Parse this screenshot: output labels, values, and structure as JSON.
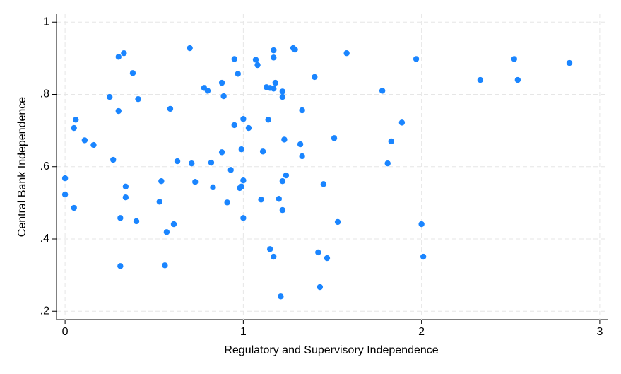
{
  "chart_data": {
    "type": "scatter",
    "x_label": "Regulatory and Supervisory Independence",
    "y_label": "Central Bank Independence",
    "color": "#1a85ff",
    "grid": true,
    "xlim": [
      -0.048,
      3.044
    ],
    "ylim": [
      0.177,
      1.022
    ],
    "xticks": [
      0,
      1,
      2,
      3
    ],
    "yticks": [
      {
        "value": 0.2,
        "label": ".2"
      },
      {
        "value": 0.4,
        "label": ".4"
      },
      {
        "value": 0.6,
        "label": ".6"
      },
      {
        "value": 0.8,
        "label": ".8"
      },
      1
    ],
    "x": [
      0,
      0,
      0.05,
      0.06,
      0.05,
      0.11,
      0.16,
      0.25,
      0.27,
      0.3,
      0.3,
      0.33,
      0.34,
      0.34,
      0.31,
      0.31,
      0.38,
      0.41,
      0.4,
      0.54,
      0.53,
      0.57,
      0.56,
      0.59,
      0.61,
      0.63,
      0.7,
      0.71,
      0.73,
      0.78,
      0.8,
      0.82,
      0.83,
      0.88,
      0.89,
      0.88,
      0.91,
      0.93,
      0.95,
      0.95,
      0.97,
      0.98,
      0.99,
      0.99,
      1.0,
      1.0,
      1.0,
      1.03,
      1.07,
      1.08,
      1.1,
      1.11,
      1.13,
      1.15,
      1.17,
      1.14,
      1.17,
      1.17,
      1.18,
      1.22,
      1.22,
      1.23,
      1.2,
      1.22,
      1.24,
      1.22,
      1.15,
      1.17,
      1.21,
      1.28,
      1.29,
      1.32,
      1.33,
      1.33,
      1.4,
      1.42,
      1.43,
      1.45,
      1.47,
      1.51,
      1.53,
      1.58,
      1.78,
      1.81,
      1.83,
      1.89,
      1.97,
      2.0,
      2.01,
      2.33,
      2.52,
      2.54,
      2.83
    ],
    "values": [
      0.568,
      0.523,
      0.486,
      0.73,
      0.707,
      0.673,
      0.66,
      0.793,
      0.619,
      0.754,
      0.904,
      0.914,
      0.545,
      0.515,
      0.458,
      0.325,
      0.859,
      0.787,
      0.449,
      0.56,
      0.503,
      0.419,
      0.327,
      0.76,
      0.441,
      0.615,
      0.928,
      0.609,
      0.558,
      0.818,
      0.81,
      0.611,
      0.543,
      0.832,
      0.795,
      0.64,
      0.501,
      0.591,
      0.898,
      0.715,
      0.857,
      0.541,
      0.545,
      0.648,
      0.732,
      0.562,
      0.458,
      0.707,
      0.896,
      0.881,
      0.509,
      0.642,
      0.82,
      0.818,
      0.816,
      0.73,
      0.922,
      0.902,
      0.832,
      0.808,
      0.793,
      0.675,
      0.511,
      0.56,
      0.576,
      0.48,
      0.372,
      0.351,
      0.241,
      0.928,
      0.924,
      0.662,
      0.756,
      0.629,
      0.848,
      0.363,
      0.267,
      0.552,
      0.347,
      0.679,
      0.447,
      0.914,
      0.81,
      0.609,
      0.67,
      0.722,
      0.898,
      0.441,
      0.351,
      0.84,
      0.898,
      0.84,
      0.887
    ]
  }
}
